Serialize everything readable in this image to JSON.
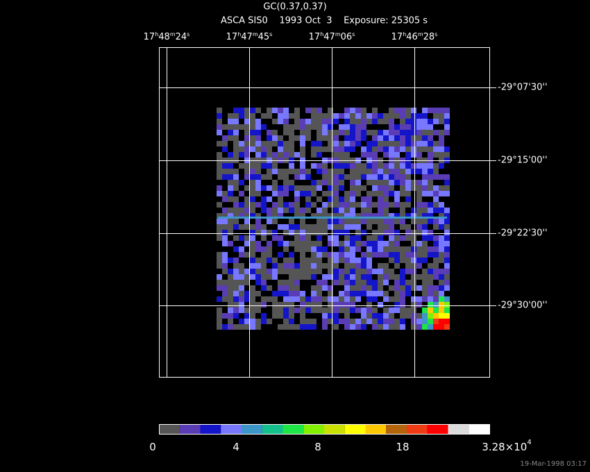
{
  "header": {
    "title": "GC(0.37,0.37)",
    "subtitle": "ASCA SIS0    1993 Oct  3    Exposure: 25305 s"
  },
  "ra_labels": [
    [
      "17",
      "h",
      "48",
      "m",
      "24",
      "s"
    ],
    [
      "17",
      "h",
      "47",
      "m",
      "45",
      "s"
    ],
    [
      "17",
      "h",
      "47",
      "m",
      "06",
      "s"
    ],
    [
      "17",
      "h",
      "46",
      "m",
      "28",
      "s"
    ]
  ],
  "dec_labels": [
    "-29°07'30''",
    "-29°15'00''",
    "-29°22'30''",
    "-29°30'00''"
  ],
  "colorbar": {
    "colors": [
      "#555555",
      "#5a3cb4",
      "#1414c8",
      "#7878ff",
      "#3c96c8",
      "#14c08c",
      "#1ee646",
      "#82f000",
      "#c8e100",
      "#ffff00",
      "#ffc800",
      "#b4640a",
      "#f03c14",
      "#ff0000",
      "#dcdcdc",
      "#ffffff"
    ],
    "labels": [
      {
        "text": "0"
      },
      {
        "text": "4"
      },
      {
        "text": "8"
      },
      {
        "text": "18"
      },
      {
        "text": "3.28×10",
        "sup": "4"
      }
    ]
  },
  "footer": "19-Mar-1998 03:17"
}
